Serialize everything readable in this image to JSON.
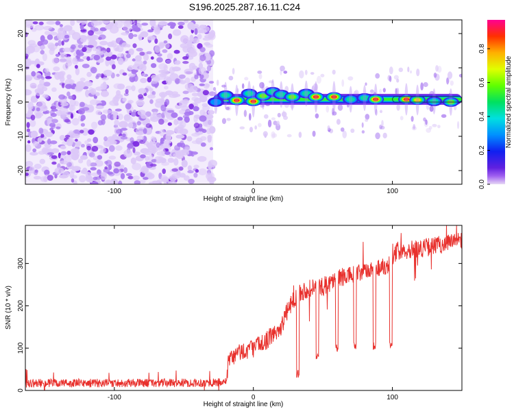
{
  "figure_title": "S196.2025.287.16.11.C24",
  "colors": {
    "snr_line": "#e8302c",
    "background": "#ffffff",
    "frame": "#000000",
    "scatter_low": "#dcc8f8",
    "scatter_mid": "#a878f0",
    "scatter_high": "#7a28e0"
  },
  "chart_data": [
    {
      "type": "heatmap",
      "title": "",
      "xlabel": "Height of straight line (km)",
      "ylabel": "Frequency (Hz)",
      "xlim": [
        -164,
        150
      ],
      "ylim": [
        -24,
        24
      ],
      "xticks": [
        -100,
        0,
        100
      ],
      "yticks": [
        -20,
        -10,
        0,
        10,
        20
      ],
      "noise_region_x": [
        -164,
        -29
      ],
      "signal_start_x": -29,
      "signal_band_center_hz": 0.8,
      "signal_blobs": [
        {
          "x": -27,
          "f": 0.0,
          "v": 0.35
        },
        {
          "x": -20,
          "f": 2.0,
          "v": 0.55
        },
        {
          "x": -12,
          "f": 0.5,
          "v": 0.9
        },
        {
          "x": -3,
          "f": 2.5,
          "v": 0.45
        },
        {
          "x": 0,
          "f": 0.2,
          "v": 0.95
        },
        {
          "x": 7,
          "f": 1.8,
          "v": 0.6
        },
        {
          "x": 14,
          "f": 3.0,
          "v": 0.45
        },
        {
          "x": 20,
          "f": 2.2,
          "v": 0.55
        },
        {
          "x": 28,
          "f": 1.5,
          "v": 0.6
        },
        {
          "x": 38,
          "f": 2.5,
          "v": 0.5
        },
        {
          "x": 45,
          "f": 1.5,
          "v": 0.9
        },
        {
          "x": 58,
          "f": 1.5,
          "v": 0.92
        },
        {
          "x": 70,
          "f": 0.8,
          "v": 0.55
        },
        {
          "x": 80,
          "f": 1.2,
          "v": 0.5
        },
        {
          "x": 88,
          "f": 0.8,
          "v": 0.9
        },
        {
          "x": 110,
          "f": 0.8,
          "v": 0.97
        },
        {
          "x": 118,
          "f": 0.6,
          "v": 0.85
        },
        {
          "x": 130,
          "f": 0.2,
          "v": 0.5
        },
        {
          "x": 142,
          "f": 0.0,
          "v": 0.6
        }
      ],
      "colorbar": {
        "label": "Normalized spectral amplitude",
        "range": [
          0.0,
          0.97
        ],
        "ticks": [
          "0.0",
          "0.2",
          "0.4",
          "0.6",
          "0.8"
        ],
        "tick_values": [
          0.0,
          0.2,
          0.4,
          0.6,
          0.8
        ]
      }
    },
    {
      "type": "line",
      "title": "",
      "xlabel": "Height of straight line (km)",
      "ylabel": "SNR (10 * v/v)",
      "xlim": [
        -164,
        150
      ],
      "ylim": [
        0,
        390
      ],
      "xticks": [
        -100,
        0,
        100
      ],
      "yticks": [
        0,
        100,
        200,
        300
      ],
      "series": [
        {
          "name": "SNR",
          "noise_amplitude": 10,
          "baseline_points": [
            {
              "x": -164,
              "y": 17
            },
            {
              "x": -40,
              "y": 18
            },
            {
              "x": -19,
              "y": 19
            },
            {
              "x": -18,
              "y": 70
            },
            {
              "x": -10,
              "y": 90
            },
            {
              "x": 0,
              "y": 100
            },
            {
              "x": 10,
              "y": 120
            },
            {
              "x": 20,
              "y": 150
            },
            {
              "x": 26,
              "y": 200
            },
            {
              "x": 32,
              "y": 230
            },
            {
              "x": 40,
              "y": 240
            },
            {
              "x": 50,
              "y": 245
            },
            {
              "x": 60,
              "y": 265
            },
            {
              "x": 75,
              "y": 275
            },
            {
              "x": 90,
              "y": 290
            },
            {
              "x": 100,
              "y": 300
            },
            {
              "x": 103,
              "y": 330
            },
            {
              "x": 120,
              "y": 335
            },
            {
              "x": 135,
              "y": 345
            },
            {
              "x": 150,
              "y": 355
            }
          ],
          "dips": [
            {
              "start": 31,
              "end": 33,
              "y": 40
            },
            {
              "start": 45,
              "end": 47,
              "y": 80
            },
            {
              "start": 59,
              "end": 61,
              "y": 100
            },
            {
              "start": 72,
              "end": 74,
              "y": 105
            },
            {
              "start": 86,
              "end": 88,
              "y": 105
            },
            {
              "start": 98,
              "end": 100,
              "y": 110
            }
          ]
        }
      ]
    }
  ]
}
